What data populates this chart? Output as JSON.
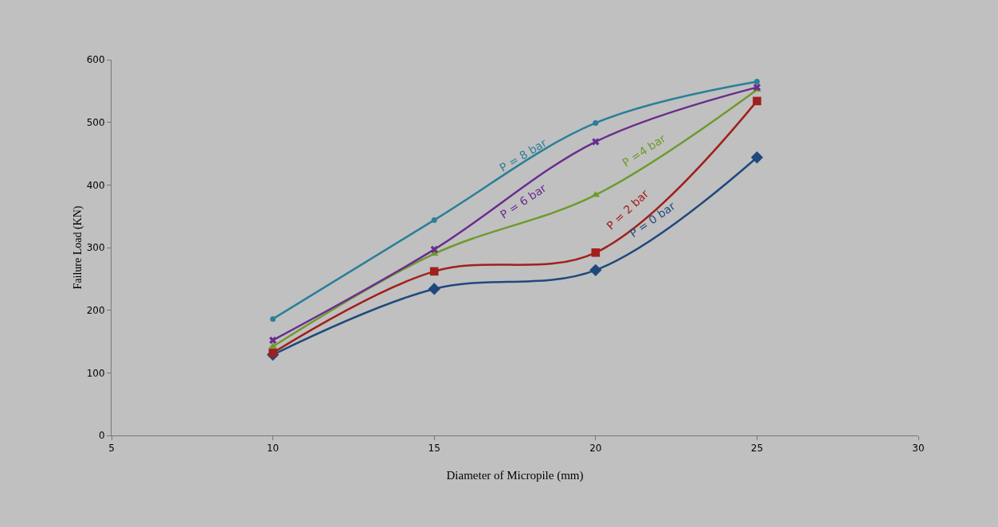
{
  "chart_data": {
    "type": "line",
    "xlabel": "Diameter of Micropile (mm)",
    "ylabel": "Failure Load (KN)",
    "x": [
      10,
      15,
      20,
      25
    ],
    "series": [
      {
        "name": "P = 0 bar",
        "color": "#1f497d",
        "values": [
          129,
          234,
          264,
          444
        ],
        "marker": "diamond"
      },
      {
        "name": "P = 2 bar",
        "color": "#a0201c",
        "values": [
          132,
          262,
          292,
          534
        ],
        "marker": "square"
      },
      {
        "name": "P =4 bar",
        "color": "#6e9a2c",
        "values": [
          142,
          290,
          384,
          552
        ],
        "marker": "triangle"
      },
      {
        "name": "P = 6 bar",
        "color": "#6a2c8e",
        "values": [
          152,
          297,
          469,
          556
        ],
        "marker": "cross"
      },
      {
        "name": "P = 8 bar",
        "color": "#2a7f9a",
        "values": [
          186,
          344,
          499,
          565
        ],
        "marker": "circle"
      }
    ],
    "xlim": [
      5,
      30
    ],
    "xticks": [
      5,
      10,
      15,
      20,
      25,
      30
    ],
    "ylim": [
      0,
      600
    ],
    "yticks": [
      0,
      100,
      200,
      300,
      400,
      500,
      600
    ],
    "grid": false,
    "legend": false
  }
}
